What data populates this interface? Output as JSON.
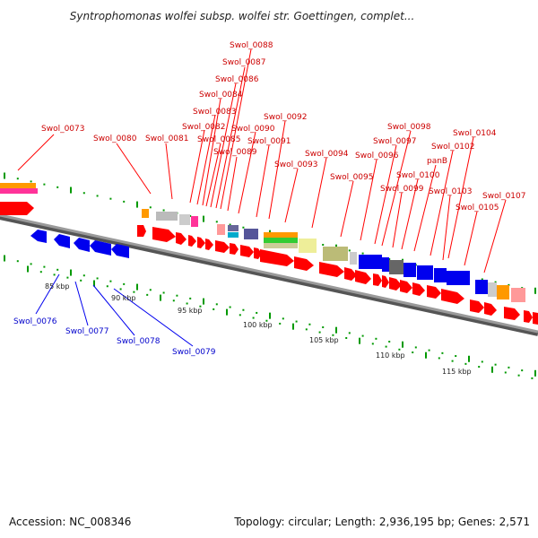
{
  "title": "Syntrophomonas wolfei subsp. wolfei str. Goettingen, complet...",
  "footer": {
    "accession": "Accession: NC_008346",
    "summary": "Topology: circular; Length: 2,936,195 bp; Genes: 2,571"
  },
  "scale_labels": [
    "85 kbp",
    "90 kbp",
    "95 kbp",
    "100 kbp",
    "105 kbp",
    "110 kbp",
    "115 kbp"
  ],
  "top_labels": [
    "Swol_0073",
    "Swol_0080",
    "Swol_0081",
    "Swol_0082",
    "Swol_0083",
    "Swol_0084",
    "Swol_0085",
    "Swol_0086",
    "Swol_0087",
    "Swol_0088",
    "Swol_0089",
    "Swol_0090",
    "Swol_0091",
    "Swol_0092",
    "Swol_0093",
    "Swol_0094",
    "Swol_0095",
    "Swol_0096",
    "Swol_0097",
    "Swol_0098",
    "Swol_0099",
    "Swol_0100",
    "panB",
    "Swol_0102",
    "Swol_0103",
    "Swol_0104",
    "Swol_0105",
    "Swol_0107"
  ],
  "bottom_labels": [
    "Swol_0076",
    "Swol_0077",
    "Swol_0078",
    "Swol_0079"
  ],
  "colors": {
    "cds_forward": "#ff0000",
    "cds_reverse": "#0000ee",
    "track": "#808080",
    "tick": "#009900",
    "label_forward": "#cc0000",
    "label_reverse": "#0000cc"
  }
}
